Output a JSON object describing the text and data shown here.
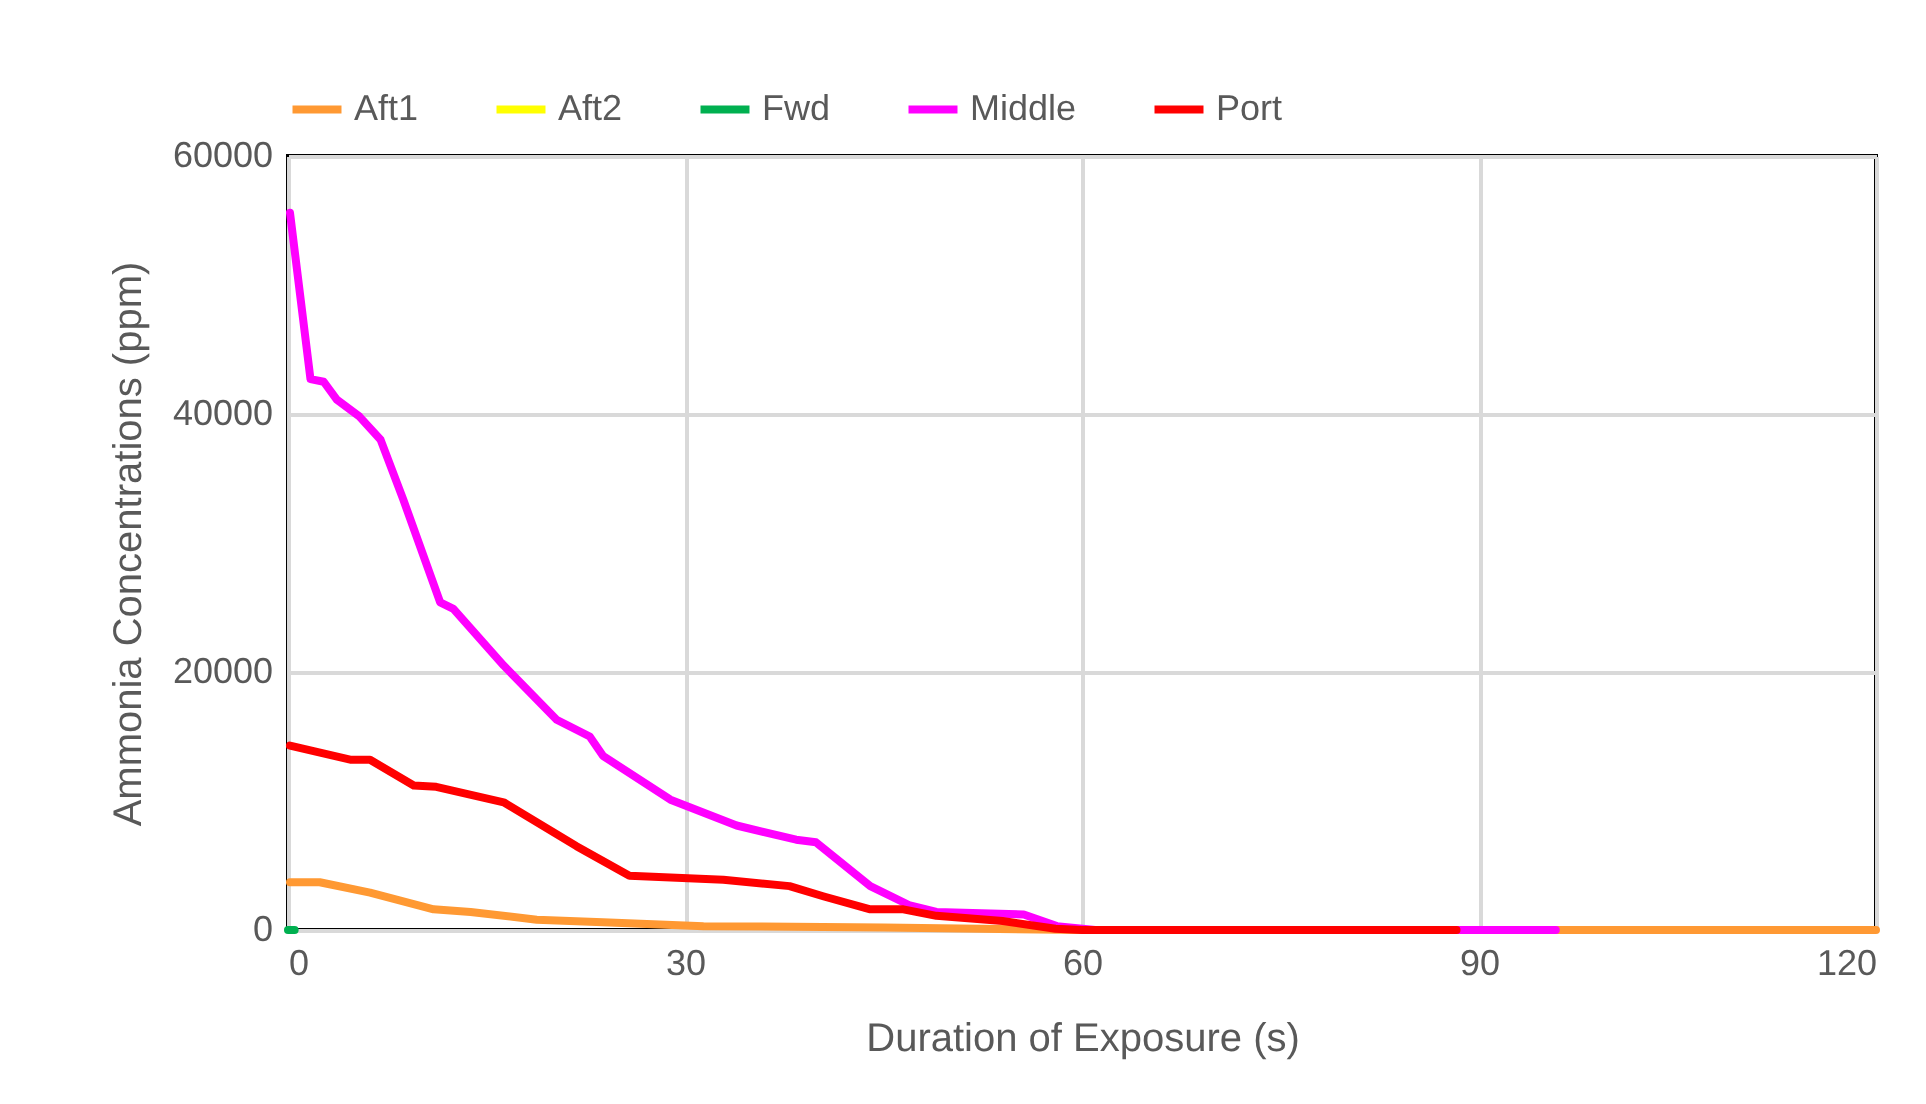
{
  "chart_data": {
    "type": "line",
    "xlabel": "Duration of Exposure (s)",
    "ylabel": "Ammonia Concentrations (ppm)",
    "xlim": [
      0,
      120
    ],
    "xticks": [
      0,
      30,
      60,
      90,
      120
    ],
    "ylim": [
      0,
      60000
    ],
    "yticks": [
      0,
      20000,
      40000,
      60000
    ],
    "grid": true,
    "legend": "top",
    "line_style": "solid",
    "marker": "none",
    "series": [
      {
        "name": "Aft1",
        "color": "#ff9933",
        "x": [
          0.15,
          2.4,
          6.2,
          11,
          13.8,
          18.8,
          23.8,
          31.4,
          45,
          60,
          90,
          120
        ],
        "values": [
          3700,
          3700,
          2900,
          1600,
          1400,
          800,
          600,
          300,
          200,
          0,
          0,
          0
        ]
      },
      {
        "name": "Aft2",
        "color": "#ffff00"
      },
      {
        "name": "Fwd",
        "color": "#00b050",
        "x": [
          0,
          0.5
        ],
        "values": [
          0,
          0
        ]
      },
      {
        "name": "Middle",
        "color": "#ff00ff",
        "x": [
          0.15,
          1.7,
          2.7,
          3.7,
          5.4,
          7,
          8.7,
          11.5,
          12.5,
          16.3,
          20.3,
          22.8,
          23.8,
          28.9,
          33.9,
          38.4,
          39.9,
          44,
          47,
          49,
          55.6,
          58.1,
          61,
          95.8
        ],
        "values": [
          55600,
          42700,
          42500,
          41100,
          39800,
          38000,
          33400,
          25400,
          24900,
          20500,
          16300,
          15000,
          13500,
          10100,
          8100,
          7000,
          6800,
          3400,
          1900,
          1400,
          1200,
          300,
          0,
          0
        ]
      },
      {
        "name": "Port",
        "color": "#ff0000",
        "x": [
          0.15,
          4.7,
          6.2,
          9.5,
          11.2,
          16.3,
          21.8,
          25.8,
          32.9,
          37.9,
          40.5,
          44,
          46.5,
          49,
          54,
          58,
          60,
          88.3
        ],
        "values": [
          14300,
          13200,
          13200,
          11200,
          11100,
          9900,
          6500,
          4200,
          3900,
          3400,
          2600,
          1600,
          1600,
          1100,
          700,
          100,
          0,
          0
        ]
      }
    ]
  }
}
